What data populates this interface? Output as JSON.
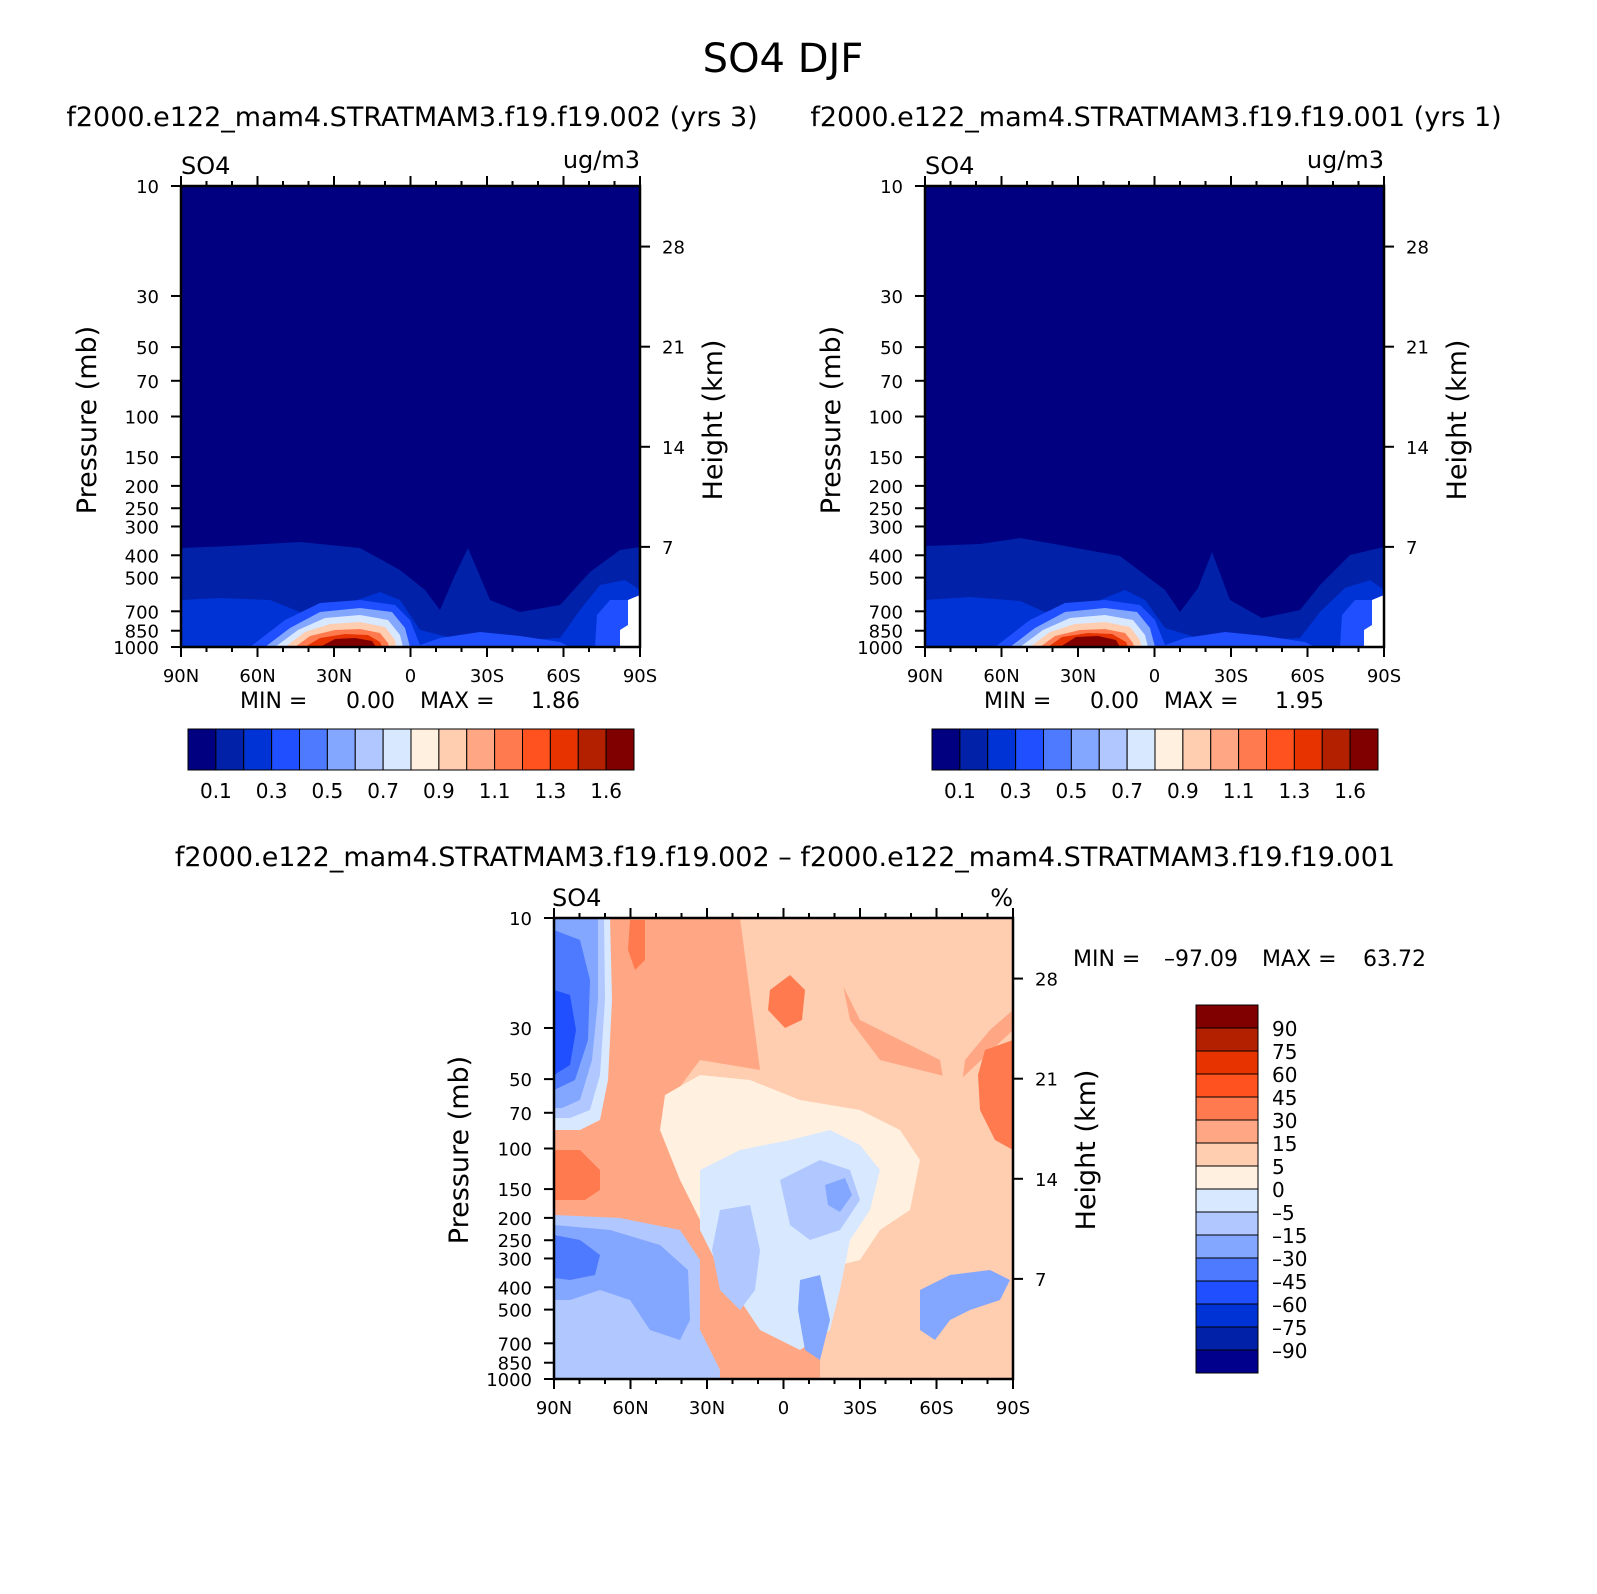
{
  "page_title": "SO4 DJF",
  "colors": {
    "abs_scale": [
      "#000080",
      "#0021a8",
      "#0033d6",
      "#1f4fff",
      "#4d7aff",
      "#83a6ff",
      "#b0c8ff",
      "#d8e8ff",
      "#fff0e0",
      "#ffcdb0",
      "#ffa784",
      "#ff7b4f",
      "#ff521e",
      "#e63300",
      "#b32000",
      "#800000"
    ],
    "diff_scale": [
      "#00008c",
      "#0021a8",
      "#0033d6",
      "#1f4fff",
      "#4d7aff",
      "#83a6ff",
      "#b0c8ff",
      "#d8e8ff",
      "#fff0e0",
      "#ffcdb0",
      "#ffa784",
      "#ff7b4f",
      "#ff521e",
      "#e63300",
      "#b32000",
      "#800000"
    ]
  },
  "chart_data": [
    {
      "type": "heatmap",
      "panel_title": "f2000.e122_mam4.STRATMAM3.f19.f19.002 (yrs 3)",
      "variable": "SO4",
      "units": "ug/m3",
      "xlabel": "",
      "ylabel": "Pressure (mb)",
      "ylabel_right": "Height (km)",
      "x_ticks": [
        "90N",
        "60N",
        "30N",
        "0",
        "30S",
        "60S",
        "90S"
      ],
      "y_ticks": [
        10,
        30,
        50,
        70,
        100,
        150,
        200,
        250,
        300,
        400,
        500,
        700,
        850,
        1000
      ],
      "y_ticks_right": [
        28,
        21,
        14,
        7
      ],
      "ylim": [
        1000,
        10
      ],
      "min_label": "MIN =",
      "min_value": "0.00",
      "max_label": "MAX =",
      "max_value": "1.86",
      "colorbar_levels": [
        0.1,
        0.2,
        0.3,
        0.4,
        0.5,
        0.6,
        0.7,
        0.8,
        0.9,
        1.0,
        1.1,
        1.2,
        1.3,
        1.4,
        1.6
      ],
      "colorbar_labels": [
        "0.1",
        "0.3",
        "0.5",
        "0.7",
        "0.9",
        "1.1",
        "1.3",
        "1.6"
      ],
      "peak": {
        "lat": 25,
        "pressure": 900,
        "value": 1.86
      }
    },
    {
      "type": "heatmap",
      "panel_title": "f2000.e122_mam4.STRATMAM3.f19.f19.001 (yrs 1)",
      "variable": "SO4",
      "units": "ug/m3",
      "xlabel": "",
      "ylabel": "Pressure (mb)",
      "ylabel_right": "Height (km)",
      "x_ticks": [
        "90N",
        "60N",
        "30N",
        "0",
        "30S",
        "60S",
        "90S"
      ],
      "y_ticks": [
        10,
        30,
        50,
        70,
        100,
        150,
        200,
        250,
        300,
        400,
        500,
        700,
        850,
        1000
      ],
      "y_ticks_right": [
        28,
        21,
        14,
        7
      ],
      "ylim": [
        1000,
        10
      ],
      "min_label": "MIN =",
      "min_value": "0.00",
      "max_label": "MAX =",
      "max_value": "1.95",
      "colorbar_levels": [
        0.1,
        0.2,
        0.3,
        0.4,
        0.5,
        0.6,
        0.7,
        0.8,
        0.9,
        1.0,
        1.1,
        1.2,
        1.3,
        1.4,
        1.6
      ],
      "colorbar_labels": [
        "0.1",
        "0.3",
        "0.5",
        "0.7",
        "0.9",
        "1.1",
        "1.3",
        "1.6"
      ],
      "peak": {
        "lat": 25,
        "pressure": 900,
        "value": 1.95
      }
    },
    {
      "type": "heatmap",
      "panel_title": "f2000.e122_mam4.STRATMAM3.f19.f19.002 – f2000.e122_mam4.STRATMAM3.f19.f19.001",
      "variable": "SO4",
      "units": "%",
      "ylabel": "Pressure (mb)",
      "ylabel_right": "Height (km)",
      "x_ticks": [
        "90N",
        "60N",
        "30N",
        "0",
        "30S",
        "60S",
        "90S"
      ],
      "y_ticks": [
        10,
        30,
        50,
        70,
        100,
        150,
        200,
        250,
        300,
        400,
        500,
        700,
        850,
        1000
      ],
      "y_ticks_right": [
        28,
        21,
        14,
        7
      ],
      "ylim": [
        1000,
        10
      ],
      "min_label": "MIN =",
      "min_value": "–97.09",
      "max_label": "MAX =",
      "max_value": "63.72",
      "colorbar_labels": [
        "90",
        "75",
        "60",
        "45",
        "30",
        "15",
        "5",
        "0",
        "–5",
        "–15",
        "–30",
        "–45",
        "–60",
        "–75",
        "–90"
      ]
    }
  ]
}
